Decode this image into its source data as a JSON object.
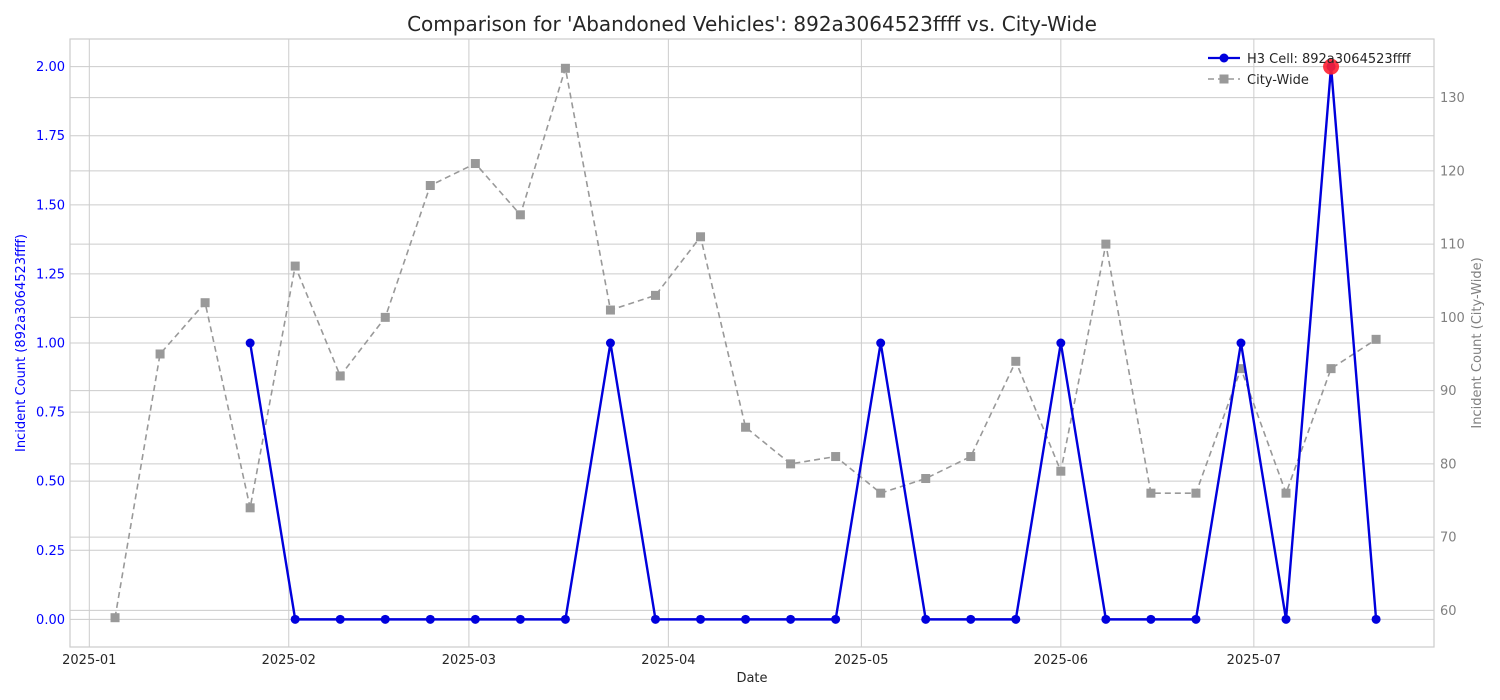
{
  "chart_data": {
    "type": "line",
    "title": "Comparison for 'Abandoned Vehicles': 892a3064523ffff vs. City-Wide",
    "xlabel": "Date",
    "ylabel_left": "Incident Count (892a3064523ffff)",
    "ylabel_right": "Incident Count (City-Wide)",
    "x_tick_labels": [
      "2025-01",
      "2025-02",
      "2025-03",
      "2025-04",
      "2025-05",
      "2025-06",
      "2025-07"
    ],
    "y_left_tick_labels": [
      "0.00",
      "0.25",
      "0.50",
      "0.75",
      "1.00",
      "1.25",
      "1.50",
      "1.75",
      "2.00"
    ],
    "y_right_tick_labels": [
      "60",
      "70",
      "80",
      "90",
      "100",
      "110",
      "120",
      "130"
    ],
    "ylim_left": [
      -0.1,
      2.1
    ],
    "ylim_right": [
      55,
      138
    ],
    "xlim": [
      "2024-12-29",
      "2025-07-29"
    ],
    "grid": true,
    "legend_placement": "top-right",
    "series": [
      {
        "name": "H3 Cell: 892a3064523ffff",
        "axis": "left",
        "color": "#0000dd",
        "line_style": "solid",
        "marker": "circle",
        "x": [
          "2025-01-26",
          "2025-02-02",
          "2025-02-09",
          "2025-02-16",
          "2025-02-23",
          "2025-03-02",
          "2025-03-09",
          "2025-03-16",
          "2025-03-23",
          "2025-03-30",
          "2025-04-06",
          "2025-04-13",
          "2025-04-20",
          "2025-04-27",
          "2025-05-04",
          "2025-05-11",
          "2025-05-18",
          "2025-05-25",
          "2025-06-01",
          "2025-06-08",
          "2025-06-15",
          "2025-06-22",
          "2025-06-29",
          "2025-07-06",
          "2025-07-13",
          "2025-07-20"
        ],
        "values": [
          1,
          0,
          0,
          0,
          0,
          0,
          0,
          0,
          1,
          0,
          0,
          0,
          0,
          0,
          1,
          0,
          0,
          0,
          1,
          0,
          0,
          0,
          1,
          0,
          2,
          0
        ]
      },
      {
        "name": "City-Wide",
        "axis": "right",
        "color": "#999999",
        "line_style": "dashed",
        "marker": "square",
        "x": [
          "2025-01-05",
          "2025-01-12",
          "2025-01-19",
          "2025-01-26",
          "2025-02-02",
          "2025-02-09",
          "2025-02-16",
          "2025-02-23",
          "2025-03-02",
          "2025-03-09",
          "2025-03-16",
          "2025-03-23",
          "2025-03-30",
          "2025-04-06",
          "2025-04-13",
          "2025-04-20",
          "2025-04-27",
          "2025-05-04",
          "2025-05-11",
          "2025-05-18",
          "2025-05-25",
          "2025-06-01",
          "2025-06-08",
          "2025-06-15",
          "2025-06-22",
          "2025-06-29",
          "2025-07-06",
          "2025-07-13",
          "2025-07-20"
        ],
        "values": [
          59,
          95,
          102,
          74,
          107,
          92,
          100,
          118,
          121,
          114,
          134,
          101,
          103,
          111,
          85,
          80,
          81,
          76,
          78,
          81,
          94,
          79,
          110,
          76,
          76,
          93,
          76,
          93,
          97
        ]
      }
    ],
    "highlight": {
      "series": "H3 Cell: 892a3064523ffff",
      "x": "2025-07-13",
      "value": 2,
      "color": "#ff2030"
    }
  }
}
